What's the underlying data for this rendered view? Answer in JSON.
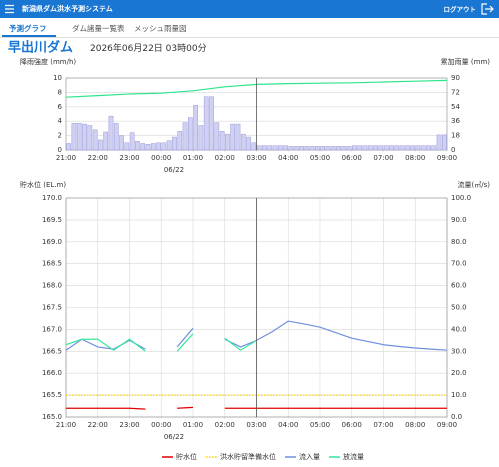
{
  "header": {
    "title": "新潟県ダム洪水予測システム",
    "logout": "ログアウト"
  },
  "tabs": [
    "予測グラフ",
    "ダム諸量一覧表",
    "メッシュ雨量図"
  ],
  "dam_name": "早出川ダム",
  "datetime": "2026年06月22日 03時00分",
  "chart_data": [
    {
      "type": "bar",
      "ylabel": "降雨強度 (mm/h)",
      "y2label": "累加雨量 (mm)",
      "xlim": [
        21,
        33
      ],
      "xticks": [
        {
          "value": 21,
          "label": "21:00"
        },
        {
          "value": 22,
          "label": "22:00"
        },
        {
          "value": 23,
          "label": "23:00"
        },
        {
          "value": 24,
          "label": "00:00"
        },
        {
          "value": 25,
          "label": "01:00"
        },
        {
          "value": 26,
          "label": "02:00"
        },
        {
          "value": 27,
          "label": "03:00"
        },
        {
          "value": 28,
          "label": "04:00"
        },
        {
          "value": 29,
          "label": "05:00"
        },
        {
          "value": 30,
          "label": "06:00"
        },
        {
          "value": 31,
          "label": "07:00"
        },
        {
          "value": 32,
          "label": "08:00"
        },
        {
          "value": 33,
          "label": "09:00"
        }
      ],
      "date_label": "06/22",
      "ylim": [
        0,
        10
      ],
      "yticks": [
        0,
        2,
        4,
        6,
        8,
        10
      ],
      "y2lim": [
        0,
        90
      ],
      "y2ticks": [
        0,
        18,
        36,
        54,
        72,
        90
      ],
      "grid": true,
      "xgrid": false,
      "marker_x": 27,
      "series": [
        {
          "type": "bar",
          "color": "#d0d0f4",
          "edge": "#9b9bd6",
          "values": [
            0.9,
            3.7,
            3.7,
            3.6,
            3.4,
            2.8,
            1.4,
            2.5,
            4.7,
            3.7,
            2.0,
            1.0,
            2.4,
            1.2,
            0.9,
            0.8,
            0.9,
            1.0,
            1.0,
            1.3,
            1.8,
            2.6,
            3.8,
            4.5,
            6.2,
            3.4,
            7.4,
            7.4,
            3.8,
            2.6,
            2.2,
            3.6,
            3.6,
            2.2,
            1.8,
            1.0,
            0.6,
            0.6,
            0.6,
            0.6,
            0.6,
            0.6,
            0.5,
            0.5,
            0.5,
            0.5,
            0.5,
            0.5,
            0.5,
            0.5,
            0.5,
            0.5,
            0.5,
            0.5,
            0.6,
            0.6,
            0.6,
            0.6,
            0.6,
            0.6,
            0.6,
            0.6,
            0.6,
            0.6,
            0.6,
            0.6,
            0.6,
            0.6,
            0.6,
            0.6,
            2.1,
            2.1
          ]
        },
        {
          "type": "line",
          "axis": "y2",
          "color": "#2ee58c",
          "x": [
            21,
            22,
            23,
            24,
            25,
            26,
            27,
            28,
            29,
            30,
            31,
            32,
            33
          ],
          "values": [
            66,
            68,
            70,
            71,
            74,
            79,
            82,
            83,
            83.5,
            84,
            85,
            86,
            87
          ]
        }
      ]
    },
    {
      "type": "line",
      "ylabel": "貯水位 (EL.m)",
      "y2label": "流量(㎥/s)",
      "xlim": [
        21,
        33
      ],
      "xticks": [
        {
          "value": 21,
          "label": "21:00"
        },
        {
          "value": 22,
          "label": "22:00"
        },
        {
          "value": 23,
          "label": "23:00"
        },
        {
          "value": 24,
          "label": "00:00"
        },
        {
          "value": 25,
          "label": "01:00"
        },
        {
          "value": 26,
          "label": "02:00"
        },
        {
          "value": 27,
          "label": "03:00"
        },
        {
          "value": 28,
          "label": "04:00"
        },
        {
          "value": 29,
          "label": "05:00"
        },
        {
          "value": 30,
          "label": "06:00"
        },
        {
          "value": 31,
          "label": "07:00"
        },
        {
          "value": 32,
          "label": "08:00"
        },
        {
          "value": 33,
          "label": "09:00"
        }
      ],
      "date_label": "06/22",
      "ylim": [
        165,
        170
      ],
      "yticks": [
        {
          "value": 165,
          "label": "165.0"
        },
        165.5,
        {
          "value": 166,
          "label": "166.0"
        },
        166.5,
        {
          "value": 167,
          "label": "167.0"
        },
        167.5,
        {
          "value": 168,
          "label": "168.0"
        },
        168.5,
        {
          "value": 169,
          "label": "169.0"
        },
        169.5,
        {
          "value": 170,
          "label": "170.0"
        }
      ],
      "y2lim": [
        0,
        100
      ],
      "y2ticks": [
        {
          "value": 0,
          "label": "0.0"
        },
        {
          "value": 10,
          "label": "10.0"
        },
        {
          "value": 20,
          "label": "20.0"
        },
        {
          "value": 30,
          "label": "30.0"
        },
        {
          "value": 40,
          "label": "40.0"
        },
        {
          "value": 50,
          "label": "50.0"
        },
        {
          "value": 60,
          "label": "60.0"
        },
        {
          "value": 70,
          "label": "70.0"
        },
        {
          "value": 80,
          "label": "80.0"
        },
        {
          "value": 90,
          "label": "90.0"
        },
        {
          "value": 100,
          "label": "100.0"
        }
      ],
      "grid": true,
      "xgrid": true,
      "marker_x": 27,
      "x": [
        21,
        21.5,
        22,
        22.5,
        23,
        23.5,
        24,
        24.5,
        25,
        25.5,
        26,
        26.5,
        27,
        27.5,
        28,
        28.5,
        29,
        29.5,
        30,
        30.5,
        31,
        31.5,
        32,
        32.5,
        33
      ],
      "series": [
        {
          "name": "貯水位",
          "type": "line",
          "color": "#e00000",
          "values": [
            165.2,
            165.2,
            165.2,
            165.2,
            165.2,
            165.18,
            null,
            165.2,
            165.22,
            null,
            165.2,
            165.2,
            165.2,
            165.2,
            165.2,
            165.2,
            165.2,
            165.2,
            165.2,
            165.2,
            165.2,
            165.2,
            165.2,
            165.2,
            165.2
          ]
        },
        {
          "name": "洪水貯留準備水位",
          "type": "line",
          "color": "#f5d000",
          "dotted": true,
          "values": [
            165.5,
            165.5,
            165.5,
            165.5,
            165.5,
            165.5,
            165.5,
            165.5,
            165.5,
            165.5,
            165.5,
            165.5,
            165.5,
            165.5,
            165.5,
            165.5,
            165.5,
            165.5,
            165.5,
            165.5,
            165.5,
            165.5,
            165.5,
            165.5,
            165.5
          ]
        },
        {
          "name": "流入量",
          "type": "line",
          "axis": "y2",
          "color": "#6f8fe0",
          "values": [
            30.5,
            35.5,
            32,
            31,
            35,
            31,
            null,
            32,
            40.5,
            null,
            35.5,
            32,
            35,
            39,
            43.8,
            42.5,
            41,
            38.5,
            36,
            34.5,
            33,
            32.2,
            31.5,
            31,
            30.5
          ]
        },
        {
          "name": "放流量",
          "type": "line",
          "axis": "y2",
          "color": "#33e89a",
          "values": [
            33,
            35.5,
            35.5,
            30.5,
            35.5,
            30,
            null,
            30,
            38,
            null,
            36,
            30.5,
            35,
            null,
            null,
            null,
            null,
            null,
            null,
            null,
            null,
            null,
            null,
            null,
            null
          ]
        }
      ]
    }
  ]
}
